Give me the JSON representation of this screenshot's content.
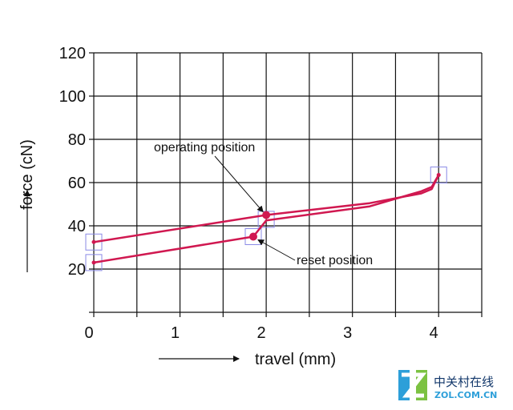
{
  "chart_data": {
    "type": "line",
    "xlabel": "travel (mm)",
    "ylabel": "force (cN)",
    "xlim": [
      0,
      4.5
    ],
    "ylim": [
      0,
      120
    ],
    "xticks": [
      0,
      1,
      2,
      3,
      4
    ],
    "yticks": [
      20,
      40,
      60,
      80,
      100,
      120
    ],
    "grid": true,
    "series": [
      {
        "color": "#d01850",
        "points": [
          [
            0,
            23
          ],
          [
            1.85,
            35
          ],
          [
            2.0,
            42.5
          ],
          [
            3.2,
            49
          ],
          [
            3.8,
            56
          ],
          [
            3.92,
            58
          ],
          [
            4.0,
            63.5
          ]
        ]
      },
      {
        "color": "#d01850",
        "points": [
          [
            0,
            32.5
          ],
          [
            2.0,
            45
          ],
          [
            3.2,
            50.5
          ],
          [
            3.8,
            55
          ],
          [
            3.92,
            57
          ],
          [
            4.0,
            63.5
          ]
        ]
      }
    ],
    "markers": [
      {
        "x": 0,
        "y": 32.5,
        "r": 2.5
      },
      {
        "x": 0,
        "y": 23,
        "r": 2.5
      },
      {
        "x": 2.0,
        "y": 45,
        "r": 5
      },
      {
        "x": 1.85,
        "y": 35,
        "r": 5
      },
      {
        "x": 4.0,
        "y": 63.5,
        "r": 2.5
      }
    ],
    "highlight_boxes": [
      [
        0,
        32.5
      ],
      [
        0,
        23
      ],
      [
        2.0,
        43
      ],
      [
        1.85,
        35
      ],
      [
        4.0,
        63.5
      ]
    ],
    "annotations": [
      {
        "text": "operating position",
        "target": [
          2.0,
          45
        ]
      },
      {
        "text": "reset position",
        "target": [
          1.85,
          35
        ]
      }
    ],
    "colors": {
      "curve": "#d01850",
      "grid": "#111111",
      "box": "#8a8ae6"
    }
  },
  "watermark": {
    "text": "中关村在线",
    "subtext": "ZOL.COM.CN",
    "colors": {
      "blue": "#2d9fd9",
      "green": "#7cc242",
      "dark": "#13386b"
    }
  }
}
